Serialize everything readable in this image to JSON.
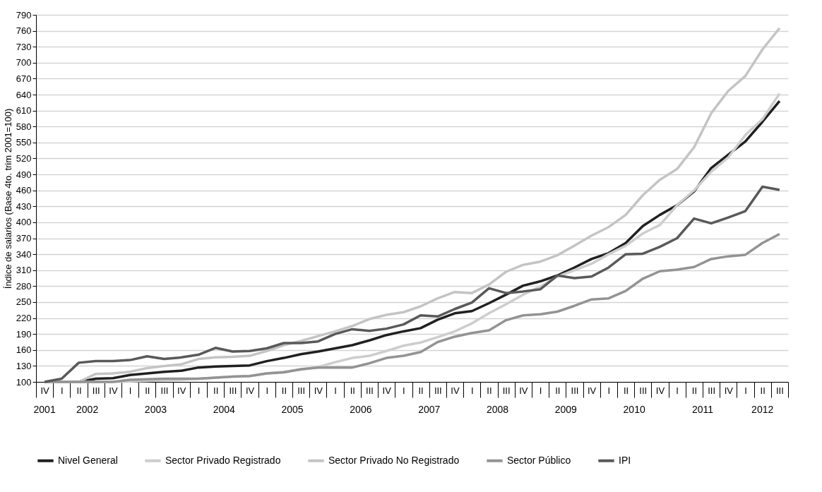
{
  "chart_data": {
    "type": "line",
    "ylabel": "Índice de salarios (Base 4to. trim 2001=100)",
    "categories": [
      "IV",
      "I",
      "II",
      "III",
      "IV",
      "I",
      "II",
      "III",
      "IV",
      "I",
      "II",
      "III",
      "IV",
      "I",
      "II",
      "III",
      "IV",
      "I",
      "II",
      "III",
      "IV",
      "I",
      "II",
      "III",
      "IV",
      "I",
      "II",
      "III",
      "IV",
      "I",
      "II",
      "III",
      "IV",
      "I",
      "II",
      "III",
      "IV",
      "I",
      "II",
      "III",
      "IV",
      "I",
      "II",
      "III"
    ],
    "annotations": [
      "2001",
      "2002",
      "2003",
      "2004",
      "2005",
      "2006",
      "2007",
      "2008",
      "2009",
      "2010",
      "2011",
      "2012"
    ],
    "series": [
      {
        "name": "Nivel General",
        "color": "#231f20",
        "values": [
          100,
          100,
          100,
          106,
          107,
          113,
          116,
          119,
          121,
          127,
          129,
          130,
          131,
          139,
          145,
          152,
          157,
          163,
          169,
          178,
          188,
          195,
          201,
          217,
          229,
          233,
          248,
          264,
          281,
          289,
          300,
          315,
          331,
          342,
          361,
          393,
          414,
          432,
          458,
          502,
          527,
          552,
          589,
          628
        ]
      },
      {
        "name": "Sector Privado Registrado",
        "color": "#cdcdcd",
        "values": [
          100,
          100,
          100,
          100,
          100,
          101,
          102,
          103,
          104,
          106,
          108,
          110,
          111,
          116,
          119,
          123,
          128,
          137,
          145,
          149,
          158,
          168,
          174,
          184,
          195,
          210,
          229,
          246,
          264,
          279,
          298,
          310,
          322,
          340,
          356,
          379,
          395,
          432,
          460,
          495,
          522,
          564,
          594,
          642
        ]
      },
      {
        "name": "Sector Privado No Registrado",
        "color": "#c4c4c4",
        "values": [
          100,
          100,
          100,
          115,
          116,
          119,
          126,
          130,
          133,
          143,
          146,
          147,
          149,
          158,
          169,
          177,
          186,
          195,
          205,
          218,
          226,
          231,
          242,
          257,
          269,
          267,
          283,
          307,
          320,
          326,
          338,
          356,
          375,
          391,
          414,
          451,
          480,
          500,
          541,
          605,
          647,
          675,
          725,
          765
        ]
      },
      {
        "name": "Sector Público",
        "color": "#939393",
        "values": [
          100,
          100,
          100,
          100,
          100,
          104,
          105,
          106,
          106,
          106,
          108,
          110,
          111,
          116,
          118,
          124,
          127,
          127,
          127,
          135,
          145,
          149,
          156,
          175,
          185,
          192,
          197,
          216,
          225,
          227,
          232,
          243,
          255,
          257,
          271,
          294,
          308,
          311,
          316,
          331,
          336,
          339,
          361,
          378
        ]
      },
      {
        "name": "IPI",
        "color": "#595959",
        "values": [
          100,
          106,
          136,
          139,
          139,
          141,
          148,
          143,
          146,
          151,
          164,
          157,
          158,
          163,
          173,
          173,
          176,
          190,
          199,
          196,
          200,
          208,
          225,
          223,
          237,
          249,
          276,
          267,
          270,
          274,
          300,
          295,
          298,
          315,
          340,
          341,
          354,
          370,
          407,
          398,
          409,
          421,
          467,
          461
        ]
      }
    ],
    "ylim": [
      100,
      790
    ],
    "yticks": [
      100,
      130,
      160,
      190,
      220,
      250,
      280,
      310,
      340,
      370,
      400,
      430,
      460,
      490,
      520,
      550,
      580,
      610,
      640,
      670,
      700,
      730,
      760,
      790
    ],
    "grid": "y",
    "legend": "bottom",
    "marker": "none",
    "line_style": "solid"
  }
}
